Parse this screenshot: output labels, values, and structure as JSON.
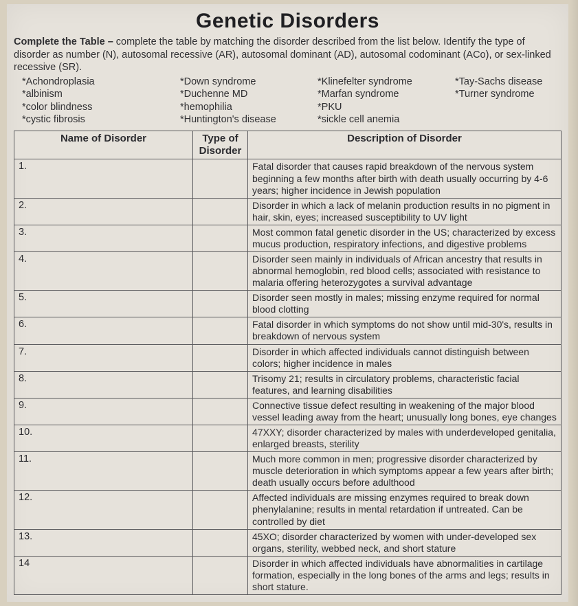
{
  "title": "Genetic Disorders",
  "instructions": {
    "lead": "Complete the Table –",
    "body": " complete the table by matching the disorder described from the list below.  Identify the type of disorder as number (N), autosomal recessive (AR), autosomal dominant (AD), autosomal codominant (ACo), or sex-linked recessive (SR)."
  },
  "disorder_list": {
    "col1": [
      "*Achondroplasia",
      "*albinism",
      "*color blindness",
      "*cystic fibrosis"
    ],
    "col2": [
      "*Down syndrome",
      "*Duchenne MD",
      "*hemophilia",
      "*Huntington's disease"
    ],
    "col3": [
      "*Klinefelter syndrome",
      "*Marfan syndrome",
      "*PKU",
      "*sickle cell anemia"
    ],
    "col4": [
      "*Tay-Sachs disease",
      "*Turner syndrome"
    ]
  },
  "headers": {
    "name": "Name of Disorder",
    "type": "Type of Disorder",
    "desc": "Description of Disorder"
  },
  "rows": [
    {
      "n": "1.",
      "desc": "Fatal disorder that causes rapid breakdown of the nervous system beginning a few months after birth with death usually occurring by 4-6 years; higher incidence in Jewish population"
    },
    {
      "n": "2.",
      "desc": "Disorder in which a lack of melanin production results in no pigment in hair, skin, eyes; increased susceptibility to UV light"
    },
    {
      "n": "3.",
      "desc": "Most common fatal genetic disorder in the US; characterized by excess mucus production, respiratory infections, and digestive problems"
    },
    {
      "n": "4.",
      "desc": "Disorder seen mainly in individuals of African ancestry that results in abnormal hemoglobin, red blood cells; associated with resistance to malaria offering heterozygotes a survival advantage"
    },
    {
      "n": "5.",
      "desc": "Disorder seen mostly in males; missing enzyme required for normal blood clotting"
    },
    {
      "n": "6.",
      "desc": "Fatal disorder in which symptoms do not show until mid-30's, results in breakdown of nervous system"
    },
    {
      "n": "7.",
      "desc": "Disorder in which affected individuals cannot distinguish between colors; higher incidence in males"
    },
    {
      "n": "8.",
      "desc": "Trisomy 21; results in circulatory problems, characteristic facial features, and learning disabilities"
    },
    {
      "n": "9.",
      "desc": "Connective tissue defect resulting in weakening of the major blood vessel leading away from the heart; unusually long bones, eye changes"
    },
    {
      "n": "10.",
      "desc": "47XXY; disorder characterized by males with underdeveloped genitalia, enlarged breasts, sterility"
    },
    {
      "n": "11.",
      "desc": "Much more common in men; progressive disorder characterized by muscle deterioration in which symptoms appear a few years after birth; death usually occurs before adulthood"
    },
    {
      "n": "12.",
      "desc": "Affected individuals are missing enzymes required to break down phenylalanine; results in mental retardation if untreated.  Can be controlled by diet"
    },
    {
      "n": "13.",
      "desc": "45XO; disorder characterized by women with under-developed sex organs, sterility, webbed neck, and short stature"
    },
    {
      "n": "14",
      "desc": "Disorder in which affected individuals have abnormalities in cartilage formation, especially in the long bones of the arms and legs; results in short stature."
    }
  ],
  "colors": {
    "page_bg": "#d8d0bf",
    "sheet_bg": "#e6e2db",
    "text": "#2c2c30",
    "border": "#5a5a5d"
  }
}
